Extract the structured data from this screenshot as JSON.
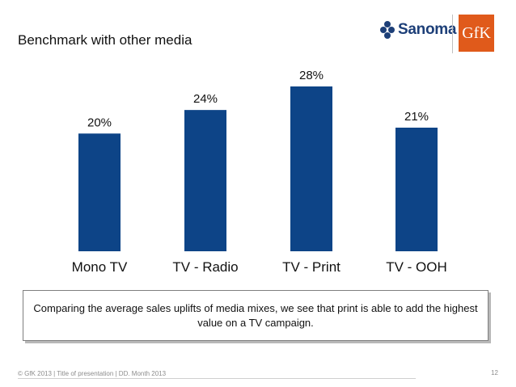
{
  "slide": {
    "title": "Benchmark with other media",
    "callout": "Comparing the average sales uplifts of media mixes, we see that print is able to add the highest value on a TV campaign.",
    "footer": "© GfK 2013 | Title of presentation | DD. Month 2013",
    "page_number": "12"
  },
  "logos": {
    "sanoma_label": "Sanoma",
    "gfk_label": "GfK",
    "sanoma_color": "#1d3f78",
    "gfk_color": "#e05a1b"
  },
  "chart_data": {
    "type": "bar",
    "title": "",
    "xlabel": "",
    "ylabel": "",
    "categories": [
      "Mono TV",
      "TV - Radio",
      "TV - Print",
      "TV - OOH"
    ],
    "values": [
      20,
      24,
      28,
      21
    ],
    "value_labels": [
      "20%",
      "24%",
      "28%",
      "21%"
    ],
    "ylim": [
      0,
      28
    ],
    "grid": false,
    "legend": "none",
    "bar_color": "#0d4487"
  }
}
